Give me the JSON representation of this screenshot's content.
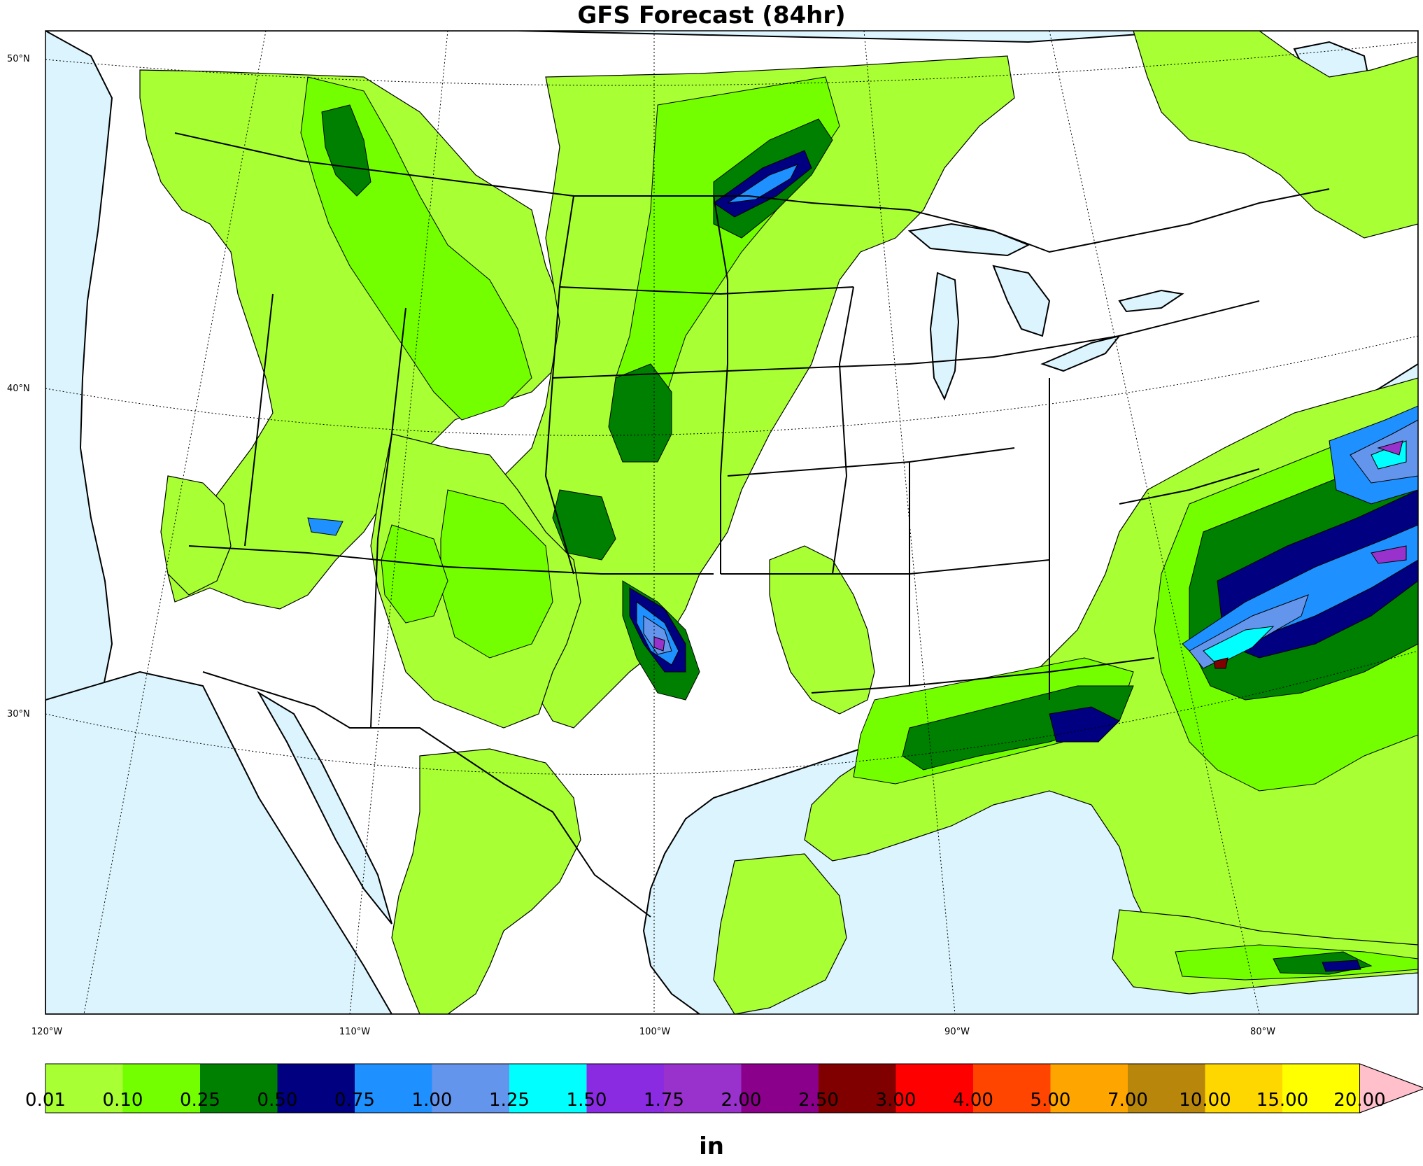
{
  "title": "GFS Forecast (84hr)",
  "lat_labels": [
    "50°N",
    "40°N",
    "30°N"
  ],
  "lon_labels": [
    "120°W",
    "110°W",
    "100°W",
    "90°W",
    "80°W"
  ],
  "colorbar": {
    "unit": "in",
    "ticks": [
      "0.01",
      "0.10",
      "0.25",
      "0.50",
      "0.75",
      "1.00",
      "1.25",
      "1.50",
      "1.75",
      "2.00",
      "2.50",
      "3.00",
      "4.00",
      "5.00",
      "7.00",
      "10.00",
      "15.00",
      "20.00"
    ],
    "colors": [
      "#a8ff33",
      "#73ff00",
      "#008000",
      "#000080",
      "#1e90ff",
      "#6495ed",
      "#00ffff",
      "#8a2be2",
      "#9932cc",
      "#8b008b",
      "#800000",
      "#ff0000",
      "#ff4500",
      "#ffa500",
      "#b8860b",
      "#ffd700",
      "#ffff00"
    ],
    "extend_color": "#ffc0cb"
  },
  "colors": {
    "ocean": "#dcf4fd",
    "land": "#ffffff",
    "border": "#000000"
  }
}
